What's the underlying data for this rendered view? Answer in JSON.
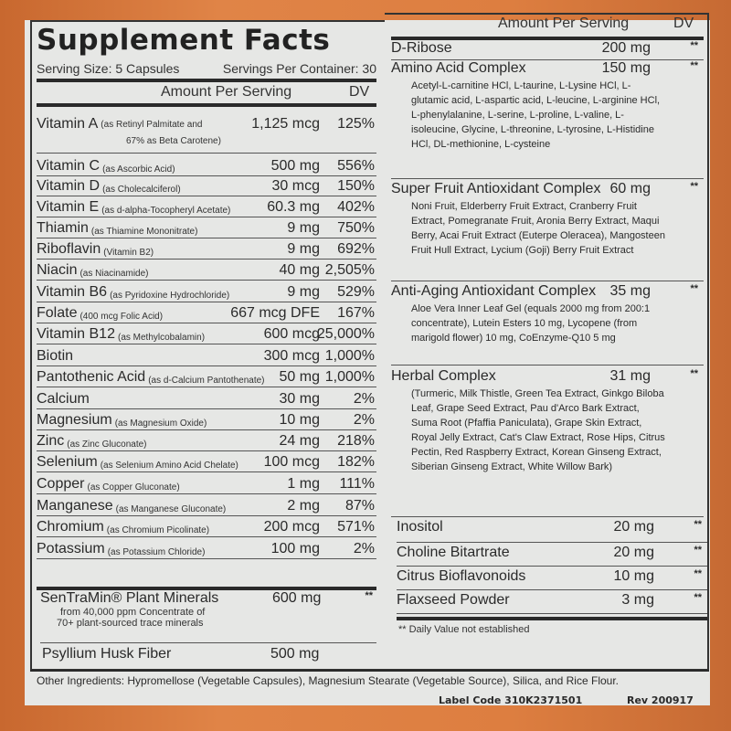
{
  "title": "Supplement Facts",
  "serving_size": "Serving Size: 5 Capsules",
  "servings_per_container": "Servings Per Container: 30",
  "header": {
    "amount": "Amount Per Serving",
    "dv": "DV"
  },
  "left_rows": [
    {
      "name": "Vitamin A",
      "sub": "(as Retinyl Palmitate and",
      "sub2": "67% as Beta Carotene)",
      "amount": "1,125 mcg",
      "dv": "125%"
    },
    {
      "name": "Vitamin C",
      "sub": "(as Ascorbic Acid)",
      "amount": "500 mg",
      "dv": "556%"
    },
    {
      "name": "Vitamin D",
      "sub": "(as Cholecalciferol)",
      "amount": "30 mcg",
      "dv": "150%"
    },
    {
      "name": "Vitamin E",
      "sub": "(as d-alpha-Tocopheryl Acetate)",
      "amount": "60.3 mg",
      "dv": "402%"
    },
    {
      "name": "Thiamin",
      "sub": "(as Thiamine Mononitrate)",
      "amount": "9 mg",
      "dv": "750%"
    },
    {
      "name": "Riboflavin",
      "sub": "(Vitamin B2)",
      "amount": "9 mg",
      "dv": "692%"
    },
    {
      "name": "Niacin",
      "sub": "(as Niacinamide)",
      "amount": "40 mg",
      "dv": "2,505%"
    },
    {
      "name": "Vitamin B6",
      "sub": "(as Pyridoxine Hydrochloride)",
      "amount": "9 mg",
      "dv": "529%"
    },
    {
      "name": "Folate",
      "sub": "(400 mcg Folic Acid)",
      "amount": "667 mcg DFE",
      "dv": "167%"
    },
    {
      "name": "Vitamin B12",
      "sub": "(as Methylcobalamin)",
      "amount": "600 mcg",
      "dv": "25,000%"
    },
    {
      "name": "Biotin",
      "sub": "",
      "amount": "300 mcg",
      "dv": "1,000%"
    },
    {
      "name": "Pantothenic Acid",
      "sub": "(as d-Calcium Pantothenate)",
      "amount": "50 mg",
      "dv": "1,000%"
    },
    {
      "name": "Calcium",
      "sub": "",
      "amount": "30 mg",
      "dv": "2%"
    },
    {
      "name": "Magnesium",
      "sub": "(as Magnesium Oxide)",
      "amount": "10 mg",
      "dv": "2%"
    },
    {
      "name": "Zinc",
      "sub": "(as Zinc Gluconate)",
      "amount": "24 mg",
      "dv": "218%"
    },
    {
      "name": "Selenium",
      "sub": "(as Selenium Amino Acid Chelate)",
      "amount": "100 mcg",
      "dv": "182%"
    },
    {
      "name": "Copper",
      "sub": "(as Copper Gluconate)",
      "amount": "1 mg",
      "dv": "111%"
    },
    {
      "name": "Manganese",
      "sub": "(as Manganese Gluconate)",
      "amount": "2 mg",
      "dv": "87%"
    },
    {
      "name": "Chromium",
      "sub": "(as Chromium Picolinate)",
      "amount": "200 mcg",
      "dv": "571%"
    },
    {
      "name": "Potassium",
      "sub": "(as Potassium Chloride)",
      "amount": "100 mg",
      "dv": "2%"
    }
  ],
  "sentramin": {
    "name": "SenTraMin® Plant Minerals",
    "amount": "600 mg",
    "dv": "**",
    "desc1": "from 40,000 ppm Concentrate of",
    "desc2": "70+ plant-sourced trace minerals"
  },
  "psyllium": {
    "name": "Psyllium Husk Fiber",
    "amount": "500 mg"
  },
  "right_rows": [
    {
      "name": "D-Ribose",
      "amount": "200 mg",
      "dv": "**",
      "desc": ""
    },
    {
      "name": "Amino Acid Complex",
      "amount": "150 mg",
      "dv": "**",
      "desc": "Acetyl-L-carnitine HCl, L-taurine, L-Lysine HCl, L-glutamic acid, L-aspartic acid, L-leucine, L-arginine HCl, L-phenylalanine, L-serine, L-proline, L-valine, L-isoleucine, Glycine, L-threonine, L-tyrosine, L-Histidine HCl, DL-methionine, L-cysteine"
    },
    {
      "name": "Super Fruit Antioxidant Complex",
      "amount": "60 mg",
      "dv": "**",
      "desc": "Noni Fruit, Elderberry Fruit Extract, Cranberry Fruit Extract, Pomegranate Fruit, Aronia Berry Extract, Maqui Berry, Acai Fruit Extract (Euterpe Oleracea), Mangosteen Fruit Hull Extract, Lycium (Goji) Berry Fruit Extract"
    },
    {
      "name": "Anti-Aging Antioxidant Complex",
      "amount": "35 mg",
      "dv": "**",
      "desc": "Aloe Vera Inner Leaf Gel (equals 2000 mg from 200:1 concentrate), Lutein Esters 10 mg, Lycopene (from marigold flower) 10 mg, CoEnzyme-Q10 5 mg"
    },
    {
      "name": "Herbal Complex",
      "amount": "31 mg",
      "dv": "**",
      "desc": "(Turmeric, Milk Thistle, Green Tea Extract, Ginkgo Biloba Leaf, Grape Seed Extract, Pau d'Arco Bark Extract, Suma Root (Pfaffia Paniculata), Grape Skin Extract, Royal Jelly Extract, Cat's Claw Extract, Rose Hips, Citrus Pectin, Red Raspberry Extract, Korean Ginseng Extract, Siberian Ginseng Extract, White Willow Bark)"
    },
    {
      "name": "Inositol",
      "amount": "20 mg",
      "dv": "**",
      "desc": ""
    },
    {
      "name": "Choline Bitartrate",
      "amount": "20 mg",
      "dv": "**",
      "desc": ""
    },
    {
      "name": "Citrus Bioflavonoids",
      "amount": "10 mg",
      "dv": "**",
      "desc": ""
    },
    {
      "name": "Flaxseed Powder",
      "amount": "3 mg",
      "dv": "**",
      "desc": ""
    }
  ],
  "footnote": "** Daily Value not established",
  "other_ingredients": "Other Ingredients: Hypromellose (Vegetable Capsules), Magnesium Stearate (Vegetable Source), Silica, and Rice Flour.",
  "label_code": "Label Code 310K2371501",
  "rev": "Rev 200917"
}
